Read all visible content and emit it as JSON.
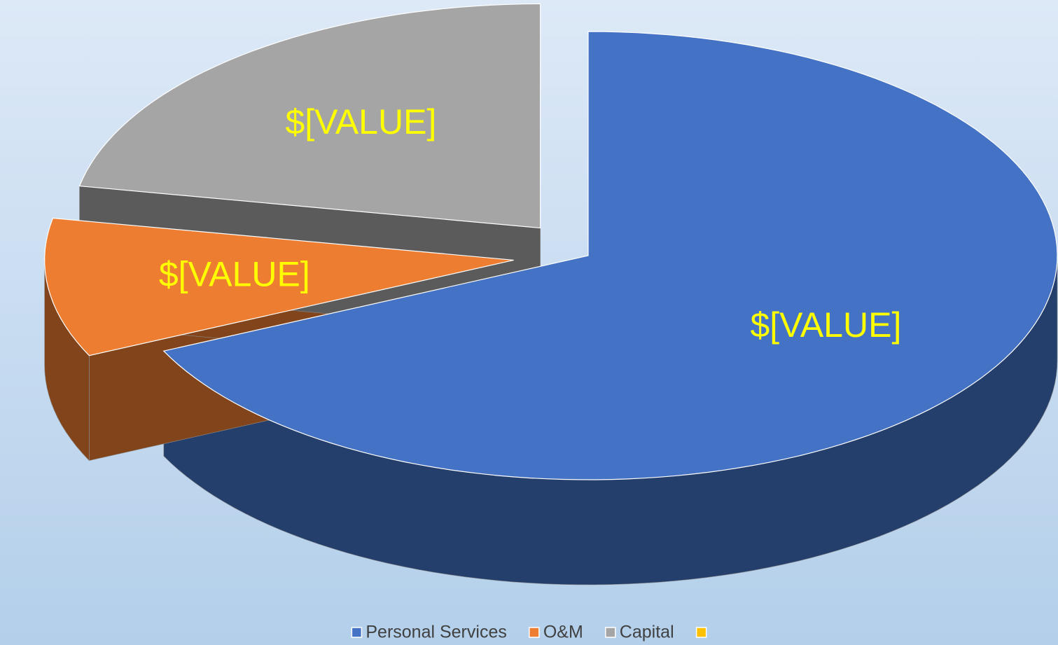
{
  "chart_data": {
    "type": "pie3d",
    "categories": [
      "Personal Services",
      "O&M",
      "Capital",
      null
    ],
    "values": [
      68,
      10,
      22,
      0
    ],
    "value_labels": [
      "$[VALUE]",
      "$[VALUE]",
      "$[VALUE]",
      null
    ],
    "colors": [
      "#4472c4",
      "#ed7d31",
      "#a5a5a5",
      "#ffc000"
    ],
    "label_color": "#ffff00",
    "legend": "bottom"
  }
}
